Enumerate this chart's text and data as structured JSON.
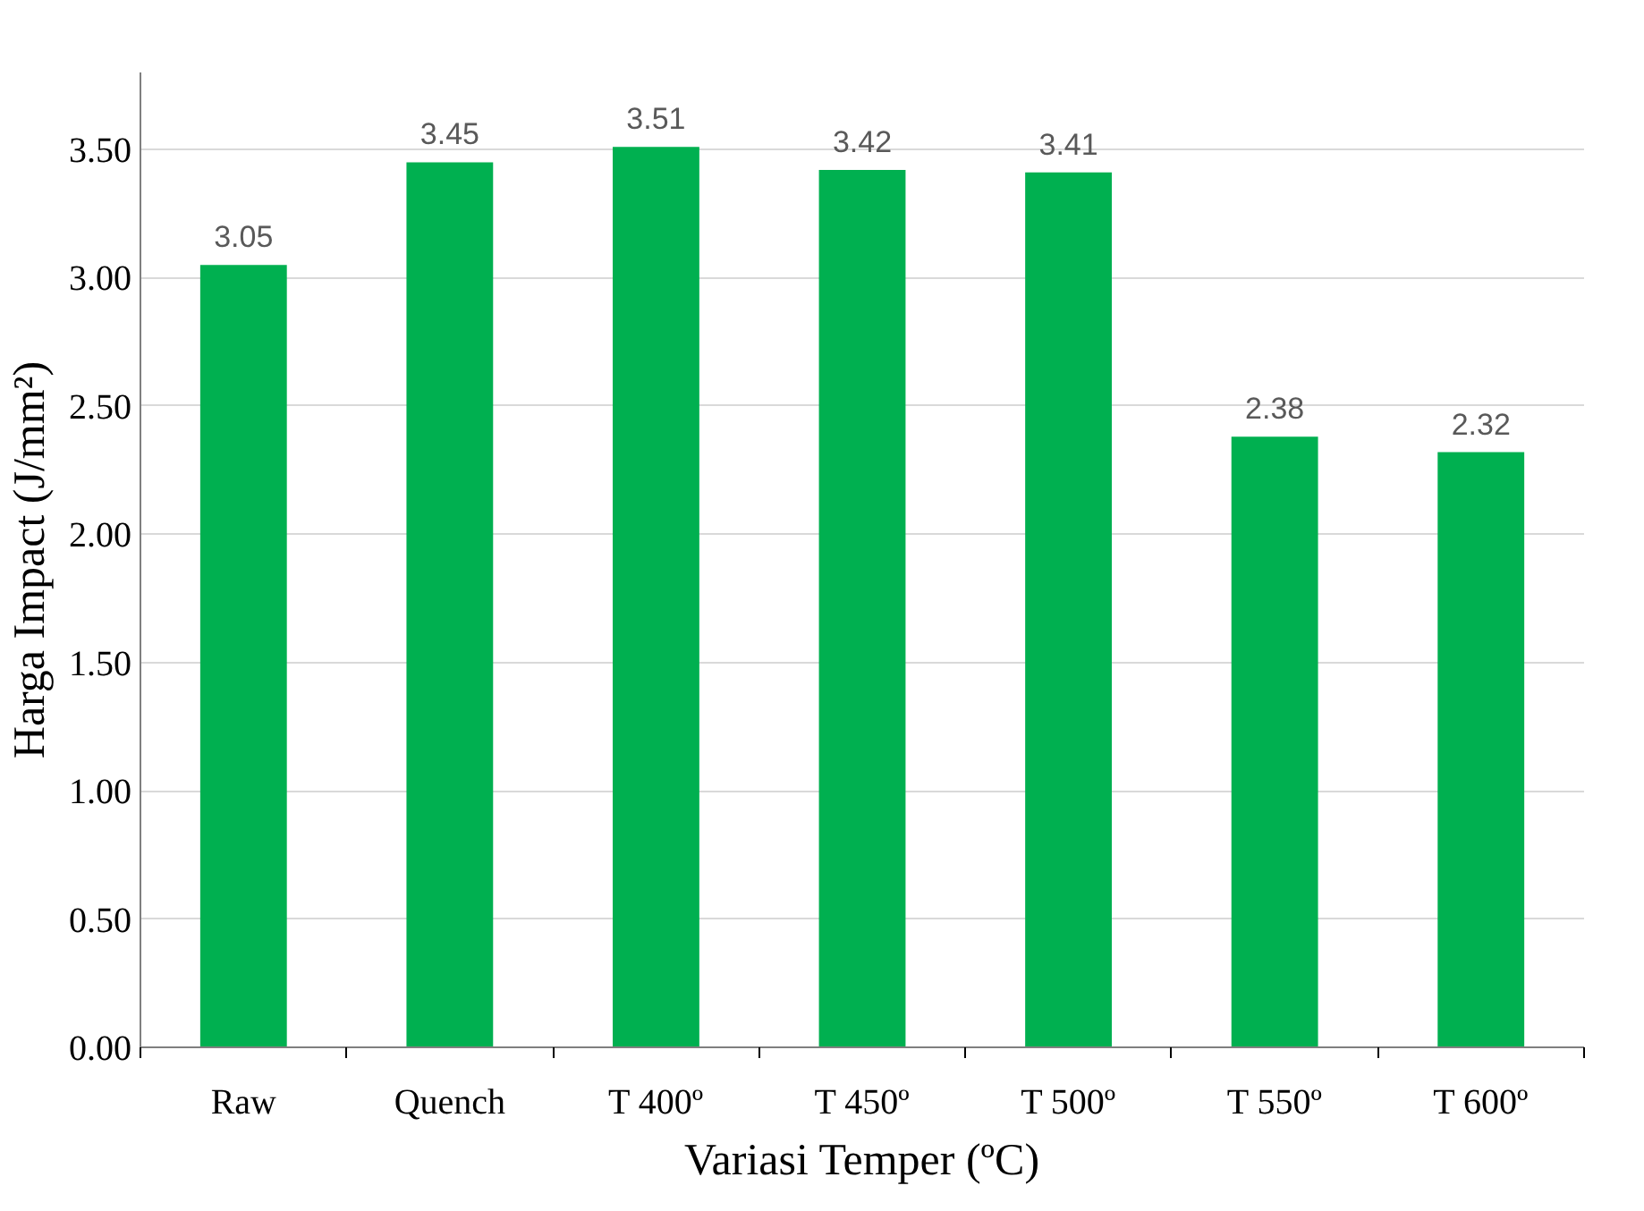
{
  "chart_data": {
    "type": "bar",
    "xlabel": "Variasi Temper (ºC)",
    "ylabel": "Harga Impact (J/mm²)",
    "categories": [
      "Raw",
      "Quench",
      "T 400º",
      "T 450º",
      "T 500º",
      "T 550º",
      "T 600º"
    ],
    "values": [
      3.05,
      3.45,
      3.51,
      3.42,
      3.41,
      2.38,
      2.32
    ],
    "color": "#00b050",
    "ylim": [
      0,
      3.8
    ],
    "yticks": [
      {
        "value": 0,
        "label": "0.00"
      },
      {
        "value": 0.5,
        "label": "0.50"
      },
      {
        "value": 1,
        "label": "1.00"
      },
      {
        "value": 1.5,
        "label": "1.50"
      },
      {
        "value": 2,
        "label": "2.00"
      },
      {
        "value": 2.5,
        "label": "2.50"
      },
      {
        "value": 3,
        "label": "3.00"
      },
      {
        "value": 3.5,
        "label": "3.50"
      }
    ],
    "grid": "y",
    "data_labels": true
  }
}
